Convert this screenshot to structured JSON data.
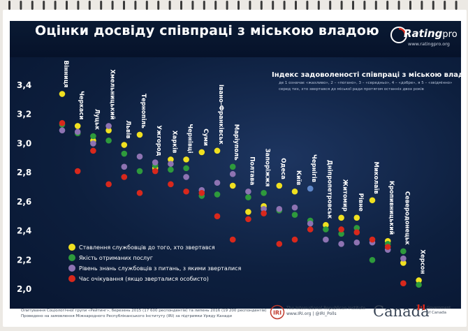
{
  "page_title": "Оцінки досвіду співпраці з міською владою",
  "brand": {
    "name": "Rating",
    "suffix": "pro",
    "url": "www.ratingpro.org"
  },
  "colors": {
    "yellow": "#f0e020",
    "green": "#2e9a3c",
    "purple": "#8e73b2",
    "red": "#d8281c",
    "blue": "#5e87c9"
  },
  "chart_data": {
    "type": "scatter",
    "title": "Індекс задоволеності співпраці з міською владою",
    "subtitle_lines": [
      "де 1 означає «жахливо», 2 – «погано», 3 – «середньо», 4 – «добре», я 5 – «звідмінно»",
      "серед тих, хто звертався до міської ради протягом останніх двох років"
    ],
    "xlabel": "",
    "ylabel": "",
    "ylim": [
      2.0,
      3.4
    ],
    "yticks": [
      "2,0",
      "2,2",
      "2,4",
      "2,6",
      "2,8",
      "3,0",
      "3,2",
      "3,4"
    ],
    "grid": false,
    "categories": [
      "Вінниця",
      "Черкаси",
      "Луцьк",
      "Хмельницький",
      "Львів",
      "Тернопіль",
      "Ужгород",
      "Харків",
      "Чернівці",
      "Суми",
      "Івано-Франківськ",
      "Маріуполь",
      "Полтава",
      "Запоріжжя",
      "Одеса",
      "Київ",
      "Чернігів",
      "Дніпропетровськ",
      "Житомир",
      "Рівне",
      "Миколаїв",
      "Кропивницький",
      "Северодонецьк",
      "Херсон"
    ],
    "series": [
      {
        "name": "Ставлення службовців до того, хто звертався",
        "color_key": "yellow",
        "values": [
          3.34,
          3.12,
          3.02,
          3.09,
          2.99,
          3.06,
          2.83,
          2.89,
          2.89,
          2.94,
          2.95,
          2.71,
          2.53,
          2.57,
          2.71,
          2.67,
          null,
          2.44,
          2.49,
          2.49,
          2.61,
          2.33,
          2.18,
          2.06
        ]
      },
      {
        "name": "Якість отриманих послуг",
        "color_key": "green",
        "values": [
          3.13,
          3.07,
          3.05,
          3.02,
          2.93,
          2.81,
          2.85,
          2.82,
          2.83,
          2.64,
          2.65,
          2.84,
          2.63,
          2.66,
          2.54,
          2.51,
          2.47,
          2.41,
          2.38,
          2.42,
          2.2,
          2.31,
          2.26,
          2.03
        ]
      },
      {
        "name": "Рівень знань службовців з питань, з якими зверталися",
        "color_key": "purple",
        "values": [
          3.09,
          3.08,
          3.0,
          3.12,
          2.84,
          2.91,
          2.87,
          2.86,
          2.77,
          2.68,
          2.73,
          2.79,
          2.67,
          2.55,
          2.55,
          2.56,
          2.45,
          2.34,
          2.31,
          2.32,
          2.32,
          2.27,
          2.21,
          null
        ]
      },
      {
        "name": "Час очікування (якщо зверталися особисто)",
        "color_key": "red",
        "values": [
          3.14,
          2.81,
          2.95,
          2.72,
          2.77,
          2.66,
          2.81,
          2.72,
          2.67,
          2.66,
          2.5,
          2.34,
          2.48,
          2.52,
          2.31,
          2.34,
          2.41,
          null,
          2.41,
          2.39,
          2.34,
          2.29,
          2.04,
          null
        ]
      }
    ],
    "extra_points": [
      {
        "category": "Чернігів",
        "value": 2.69,
        "color_key": "blue"
      }
    ],
    "legend_position": "bottom-left"
  },
  "footer": {
    "method_line1": "Опитування Соціологічної групи «Рейтинг», березень 2015 (17 600 респондентів) та липень 2016 (19 200 респондентів)",
    "method_line2": "Проведено на замовлення Міжнародного Республіканського Інституту (IRI) за підтримки Уряду Канади",
    "iri_name": "The International Republican Institute",
    "iri_contacts": "www.IRI.org | @IRI_Polls",
    "iri_logo_text": "IRI",
    "canada": "Canada",
    "gov_line1": "Government",
    "gov_line2": "of Canada"
  }
}
